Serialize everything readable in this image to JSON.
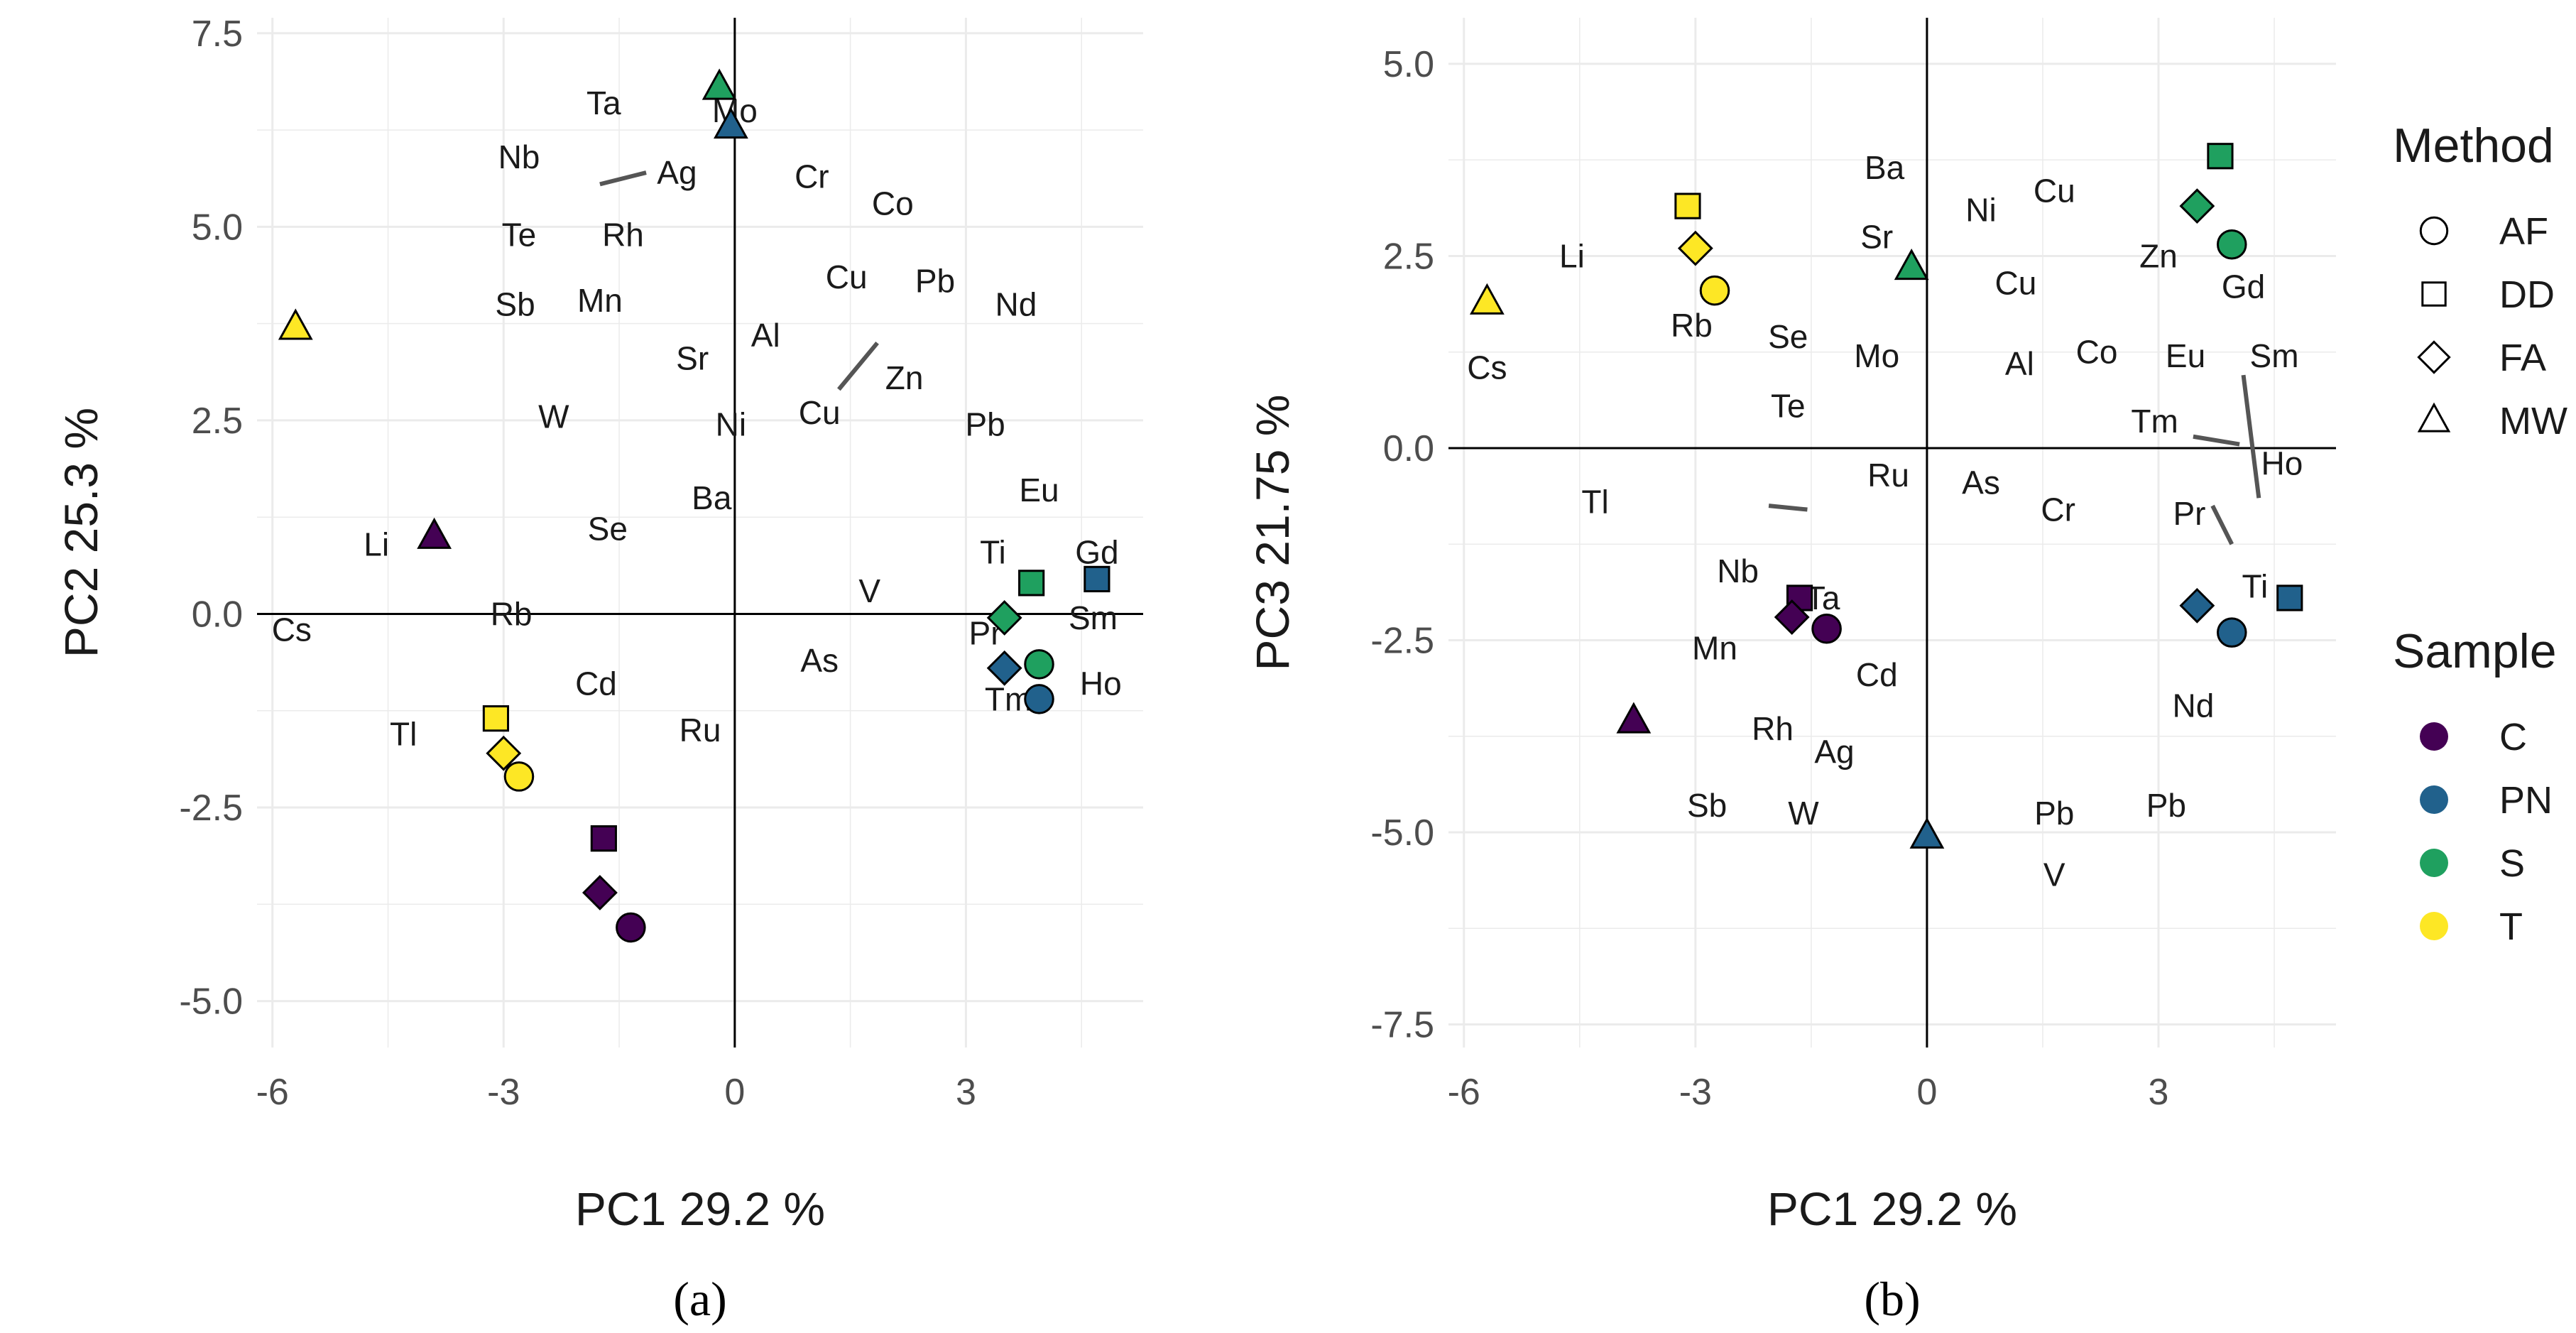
{
  "colors": {
    "C": "#440154",
    "PN": "#21618c",
    "S": "#1fa05f",
    "T": "#fde725"
  },
  "legend": {
    "method_title": "Method",
    "methods": [
      {
        "key": "AF",
        "shape": "circle"
      },
      {
        "key": "DD",
        "shape": "square"
      },
      {
        "key": "FA",
        "shape": "diamond"
      },
      {
        "key": "MW",
        "shape": "triangle"
      }
    ],
    "sample_title": "Sample",
    "samples": [
      {
        "key": "C"
      },
      {
        "key": "PN"
      },
      {
        "key": "S"
      },
      {
        "key": "T"
      }
    ]
  },
  "chart_data": [
    {
      "type": "scatter",
      "panel_label": "(a)",
      "xlabel": "PC1 29.2 %",
      "ylabel": "PC2 25.3 %",
      "xlim": [
        -6.2,
        5.3
      ],
      "ylim": [
        -5.6,
        7.7
      ],
      "xticks": [
        -6,
        -3,
        0,
        3
      ],
      "xtick_labels": [
        "-6",
        "-3",
        "0",
        "3"
      ],
      "yticks": [
        -5,
        -2.5,
        0,
        2.5,
        5,
        7.5
      ],
      "ytick_labels": [
        "-5.0",
        "-2.5",
        "0.0",
        "2.5",
        "5.0",
        "7.5"
      ],
      "grid": true,
      "points": [
        {
          "method": "MW",
          "sample": "T",
          "x": -5.7,
          "y": 3.7
        },
        {
          "method": "MW",
          "sample": "C",
          "x": -3.9,
          "y": 1.0
        },
        {
          "method": "MW",
          "sample": "S",
          "x": -0.2,
          "y": 6.8
        },
        {
          "method": "MW",
          "sample": "PN",
          "x": -0.05,
          "y": 6.3
        },
        {
          "method": "DD",
          "sample": "T",
          "x": -3.1,
          "y": -1.35
        },
        {
          "method": "FA",
          "sample": "T",
          "x": -3.0,
          "y": -1.8
        },
        {
          "method": "AF",
          "sample": "T",
          "x": -2.8,
          "y": -2.1
        },
        {
          "method": "DD",
          "sample": "C",
          "x": -1.7,
          "y": -2.9
        },
        {
          "method": "FA",
          "sample": "C",
          "x": -1.75,
          "y": -3.6
        },
        {
          "method": "AF",
          "sample": "C",
          "x": -1.35,
          "y": -4.05
        },
        {
          "method": "DD",
          "sample": "S",
          "x": 3.85,
          "y": 0.4
        },
        {
          "method": "DD",
          "sample": "PN",
          "x": 4.7,
          "y": 0.45
        },
        {
          "method": "FA",
          "sample": "S",
          "x": 3.5,
          "y": -0.05
        },
        {
          "method": "FA",
          "sample": "PN",
          "x": 3.5,
          "y": -0.7
        },
        {
          "method": "AF",
          "sample": "S",
          "x": 3.95,
          "y": -0.65
        },
        {
          "method": "AF",
          "sample": "PN",
          "x": 3.95,
          "y": -1.1
        }
      ],
      "variable_labels": [
        {
          "text": "Ta",
          "x": -1.7,
          "y": 6.6
        },
        {
          "text": "Mo",
          "x": 0.0,
          "y": 6.5
        },
        {
          "text": "Nb",
          "x": -2.8,
          "y": 5.9
        },
        {
          "text": "Ag",
          "x": -0.75,
          "y": 5.7
        },
        {
          "text": "Cr",
          "x": 1.0,
          "y": 5.65
        },
        {
          "text": "Co",
          "x": 2.05,
          "y": 5.3
        },
        {
          "text": "Te",
          "x": -2.8,
          "y": 4.9
        },
        {
          "text": "Rh",
          "x": -1.45,
          "y": 4.9
        },
        {
          "text": "Cu",
          "x": 1.45,
          "y": 4.35
        },
        {
          "text": "Pb",
          "x": 2.6,
          "y": 4.3
        },
        {
          "text": "Nd",
          "x": 3.65,
          "y": 4.0
        },
        {
          "text": "Sb",
          "x": -2.85,
          "y": 4.0
        },
        {
          "text": "Mn",
          "x": -1.75,
          "y": 4.05
        },
        {
          "text": "Al",
          "x": 0.4,
          "y": 3.6
        },
        {
          "text": "Sr",
          "x": -0.55,
          "y": 3.3
        },
        {
          "text": "Zn",
          "x": 2.2,
          "y": 3.05
        },
        {
          "text": "W",
          "x": -2.35,
          "y": 2.55
        },
        {
          "text": "Cu",
          "x": 1.1,
          "y": 2.6
        },
        {
          "text": "Ni",
          "x": -0.05,
          "y": 2.45
        },
        {
          "text": "Pb",
          "x": 3.25,
          "y": 2.45
        },
        {
          "text": "Eu",
          "x": 3.95,
          "y": 1.6
        },
        {
          "text": "Ba",
          "x": -0.3,
          "y": 1.5
        },
        {
          "text": "Li",
          "x": -4.65,
          "y": 0.9
        },
        {
          "text": "Se",
          "x": -1.65,
          "y": 1.1
        },
        {
          "text": "Ti",
          "x": 3.35,
          "y": 0.8
        },
        {
          "text": "Gd",
          "x": 4.7,
          "y": 0.8
        },
        {
          "text": "V",
          "x": 1.75,
          "y": 0.3
        },
        {
          "text": "Rb",
          "x": -2.9,
          "y": 0.0
        },
        {
          "text": "Sm",
          "x": 4.65,
          "y": -0.05
        },
        {
          "text": "Cs",
          "x": -5.75,
          "y": -0.2
        },
        {
          "text": "Pr",
          "x": 3.25,
          "y": -0.25
        },
        {
          "text": "As",
          "x": 1.1,
          "y": -0.6
        },
        {
          "text": "Cd",
          "x": -1.8,
          "y": -0.9
        },
        {
          "text": "Ho",
          "x": 4.75,
          "y": -0.9
        },
        {
          "text": "Tm",
          "x": 3.55,
          "y": -1.1
        },
        {
          "text": "Ru",
          "x": -0.45,
          "y": -1.5
        },
        {
          "text": "Tl",
          "x": -4.3,
          "y": -1.55
        }
      ],
      "connector_segments": [
        {
          "x1": -1.75,
          "y1": 5.55,
          "x2": -1.15,
          "y2": 5.7
        },
        {
          "x1": 1.35,
          "y1": 2.9,
          "x2": 1.85,
          "y2": 3.5
        }
      ]
    },
    {
      "type": "scatter",
      "panel_label": "(b)",
      "xlabel": "PC1 29.2 %",
      "ylabel": "PC3 21.75 %",
      "xlim": [
        -6.2,
        5.3
      ],
      "ylim": [
        -7.8,
        5.6
      ],
      "xticks": [
        -6,
        -3,
        0,
        3
      ],
      "xtick_labels": [
        "-6",
        "-3",
        "0",
        "3"
      ],
      "yticks": [
        -7.5,
        -5,
        -2.5,
        0,
        2.5,
        5
      ],
      "ytick_labels": [
        "-7.5",
        "-5.0",
        "-2.5",
        "0.0",
        "2.5",
        "5.0"
      ],
      "grid": true,
      "points": [
        {
          "method": "MW",
          "sample": "T",
          "x": -5.7,
          "y": 1.9
        },
        {
          "method": "MW",
          "sample": "S",
          "x": -0.2,
          "y": 2.35
        },
        {
          "method": "MW",
          "sample": "C",
          "x": -3.8,
          "y": -3.55
        },
        {
          "method": "MW",
          "sample": "PN",
          "x": 0.0,
          "y": -5.05
        },
        {
          "method": "DD",
          "sample": "T",
          "x": -3.1,
          "y": 3.15
        },
        {
          "method": "FA",
          "sample": "T",
          "x": -3.0,
          "y": 2.6
        },
        {
          "method": "AF",
          "sample": "T",
          "x": -2.75,
          "y": 2.05
        },
        {
          "method": "DD",
          "sample": "S",
          "x": 3.8,
          "y": 3.8
        },
        {
          "method": "FA",
          "sample": "S",
          "x": 3.5,
          "y": 3.15
        },
        {
          "method": "AF",
          "sample": "S",
          "x": 3.95,
          "y": 2.65
        },
        {
          "method": "DD",
          "sample": "C",
          "x": -1.65,
          "y": -1.95
        },
        {
          "method": "FA",
          "sample": "C",
          "x": -1.75,
          "y": -2.2
        },
        {
          "method": "AF",
          "sample": "C",
          "x": -1.3,
          "y": -2.35
        },
        {
          "method": "DD",
          "sample": "PN",
          "x": 4.7,
          "y": -1.95
        },
        {
          "method": "FA",
          "sample": "PN",
          "x": 3.5,
          "y": -2.05
        },
        {
          "method": "AF",
          "sample": "PN",
          "x": 3.95,
          "y": -2.4
        }
      ],
      "variable_labels": [
        {
          "text": "Ba",
          "x": -0.55,
          "y": 3.65
        },
        {
          "text": "Cu",
          "x": 1.65,
          "y": 3.35
        },
        {
          "text": "Ni",
          "x": 0.7,
          "y": 3.1
        },
        {
          "text": "Li",
          "x": -4.6,
          "y": 2.5
        },
        {
          "text": "Sr",
          "x": -0.65,
          "y": 2.75
        },
        {
          "text": "Zn",
          "x": 3.0,
          "y": 2.5
        },
        {
          "text": "Cu",
          "x": 1.15,
          "y": 2.15
        },
        {
          "text": "Gd",
          "x": 4.1,
          "y": 2.1
        },
        {
          "text": "Rb",
          "x": -3.05,
          "y": 1.6
        },
        {
          "text": "Se",
          "x": -1.8,
          "y": 1.45
        },
        {
          "text": "Mo",
          "x": -0.65,
          "y": 1.2
        },
        {
          "text": "Co",
          "x": 2.2,
          "y": 1.25
        },
        {
          "text": "Eu",
          "x": 3.35,
          "y": 1.2
        },
        {
          "text": "Sm",
          "x": 4.5,
          "y": 1.2
        },
        {
          "text": "Cs",
          "x": -5.7,
          "y": 1.05
        },
        {
          "text": "Al",
          "x": 1.2,
          "y": 1.1
        },
        {
          "text": "Te",
          "x": -1.8,
          "y": 0.55
        },
        {
          "text": "Tm",
          "x": 2.95,
          "y": 0.35
        },
        {
          "text": "Ru",
          "x": -0.5,
          "y": -0.35
        },
        {
          "text": "As",
          "x": 0.7,
          "y": -0.45
        },
        {
          "text": "Ho",
          "x": 4.6,
          "y": -0.2
        },
        {
          "text": "Tl",
          "x": -4.3,
          "y": -0.7
        },
        {
          "text": "Cr",
          "x": 1.7,
          "y": -0.8
        },
        {
          "text": "Pr",
          "x": 3.4,
          "y": -0.85
        },
        {
          "text": "Nb",
          "x": -2.45,
          "y": -1.6
        },
        {
          "text": "Ta",
          "x": -1.35,
          "y": -1.95
        },
        {
          "text": "Ti",
          "x": 4.25,
          "y": -1.8
        },
        {
          "text": "Mn",
          "x": -2.75,
          "y": -2.6
        },
        {
          "text": "Cd",
          "x": -0.65,
          "y": -2.95
        },
        {
          "text": "Nd",
          "x": 3.45,
          "y": -3.35
        },
        {
          "text": "Rh",
          "x": -2.0,
          "y": -3.65
        },
        {
          "text": "Ag",
          "x": -1.2,
          "y": -3.95
        },
        {
          "text": "Sb",
          "x": -2.85,
          "y": -4.65
        },
        {
          "text": "W",
          "x": -1.6,
          "y": -4.75
        },
        {
          "text": "Pb",
          "x": 1.65,
          "y": -4.75
        },
        {
          "text": "Pb",
          "x": 3.1,
          "y": -4.65
        },
        {
          "text": "V",
          "x": 1.65,
          "y": -5.55
        }
      ],
      "connector_segments": [
        {
          "x1": -2.05,
          "y1": -0.75,
          "x2": -1.55,
          "y2": -0.8
        },
        {
          "x1": 4.1,
          "y1": 0.95,
          "x2": 4.3,
          "y2": -0.65
        },
        {
          "x1": 3.45,
          "y1": 0.15,
          "x2": 4.05,
          "y2": 0.05
        },
        {
          "x1": 3.7,
          "y1": -0.75,
          "x2": 3.95,
          "y2": -1.25
        }
      ]
    }
  ]
}
